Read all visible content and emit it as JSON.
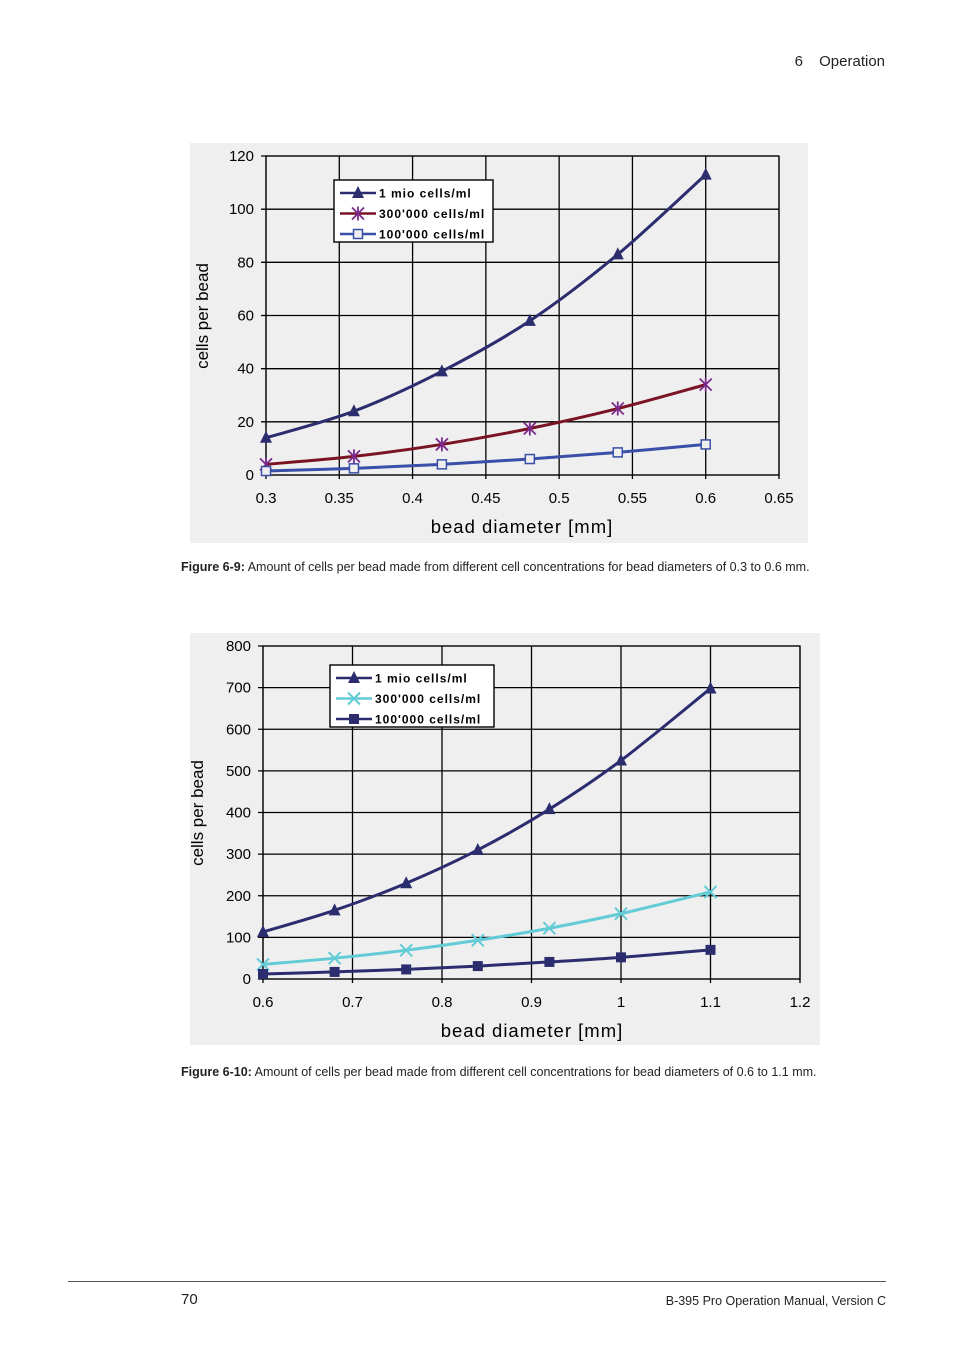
{
  "header": {
    "chapter_number": "6",
    "chapter_title": "Operation"
  },
  "figures": [
    {
      "caption_label": "Figure 6-9:",
      "caption_text": " Amount of cells per bead made from different cell concentrations for bead diameters of 0.3 to 0.6 mm."
    },
    {
      "caption_label": "Figure 6-10:",
      "caption_text": " Amount of cells per bead made from different cell concentrations for bead diameters of 0.6 to 1.1 mm."
    }
  ],
  "footer": {
    "page_number": "70",
    "manual_title": "B-395 Pro Operation Manual, Version C"
  },
  "chart_data": [
    {
      "type": "line",
      "xlabel": "bead diameter  [mm]",
      "ylabel": "cells per bead",
      "xlim": [
        0.3,
        0.65
      ],
      "ylim": [
        0,
        120
      ],
      "xticks": [
        "0.3",
        "0.35",
        "0.4",
        "0.45",
        "0.5",
        "0.55",
        "0.6",
        "0.65"
      ],
      "yticks": [
        "0",
        "20",
        "40",
        "60",
        "80",
        "100",
        "120"
      ],
      "xtick_values": [
        0.3,
        0.35,
        0.4,
        0.45,
        0.5,
        0.55,
        0.6,
        0.65
      ],
      "ytick_values": [
        0,
        20,
        40,
        60,
        80,
        100,
        120
      ],
      "grid": true,
      "legend_position": "top-left",
      "x": [
        0.3,
        0.36,
        0.42,
        0.48,
        0.54,
        0.6
      ],
      "series": [
        {
          "name": "1 mio cells/ml",
          "color": "#2b2d6e",
          "marker": "triangle",
          "values": [
            14,
            24,
            39,
            58,
            83,
            113
          ]
        },
        {
          "name": "300'000 cells/ml",
          "color": "#7a1425",
          "marker": "asterisk",
          "marker_color": "#7b2a8e",
          "values": [
            4,
            7,
            11.5,
            17.5,
            25,
            34
          ]
        },
        {
          "name": "100'000 cells/ml",
          "color": "#3a4fa8",
          "marker": "open-square",
          "values": [
            1.5,
            2.5,
            4,
            6,
            8.5,
            11.5
          ]
        }
      ]
    },
    {
      "type": "line",
      "xlabel": "bead diameter  [mm]",
      "ylabel": "cells per bead",
      "xlim": [
        0.6,
        1.2
      ],
      "ylim": [
        0,
        800
      ],
      "xticks": [
        "0.6",
        "0.7",
        "0.8",
        "0.9",
        "1",
        "1.1",
        "1.2"
      ],
      "yticks": [
        "0",
        "100",
        "200",
        "300",
        "400",
        "500",
        "600",
        "700",
        "800"
      ],
      "xtick_values": [
        0.6,
        0.7,
        0.8,
        0.9,
        1.0,
        1.1,
        1.2
      ],
      "ytick_values": [
        0,
        100,
        200,
        300,
        400,
        500,
        600,
        700,
        800
      ],
      "grid": true,
      "legend_position": "top-left",
      "x": [
        0.6,
        0.68,
        0.76,
        0.84,
        0.92,
        1.0,
        1.1
      ],
      "series": [
        {
          "name": "1 mio cells/ml",
          "color": "#2b2d6e",
          "marker": "triangle",
          "values": [
            113,
            165,
            230,
            310,
            408,
            525,
            698
          ]
        },
        {
          "name": "300'000 cells/ml",
          "color": "#62cbd6",
          "marker": "x",
          "values": [
            35,
            50,
            69,
            93,
            122,
            157,
            209
          ]
        },
        {
          "name": "100'000 cells/ml",
          "color": "#2b2d6e",
          "marker": "filled-square",
          "values": [
            12,
            17,
            23,
            31,
            41,
            52,
            70
          ]
        }
      ]
    }
  ]
}
